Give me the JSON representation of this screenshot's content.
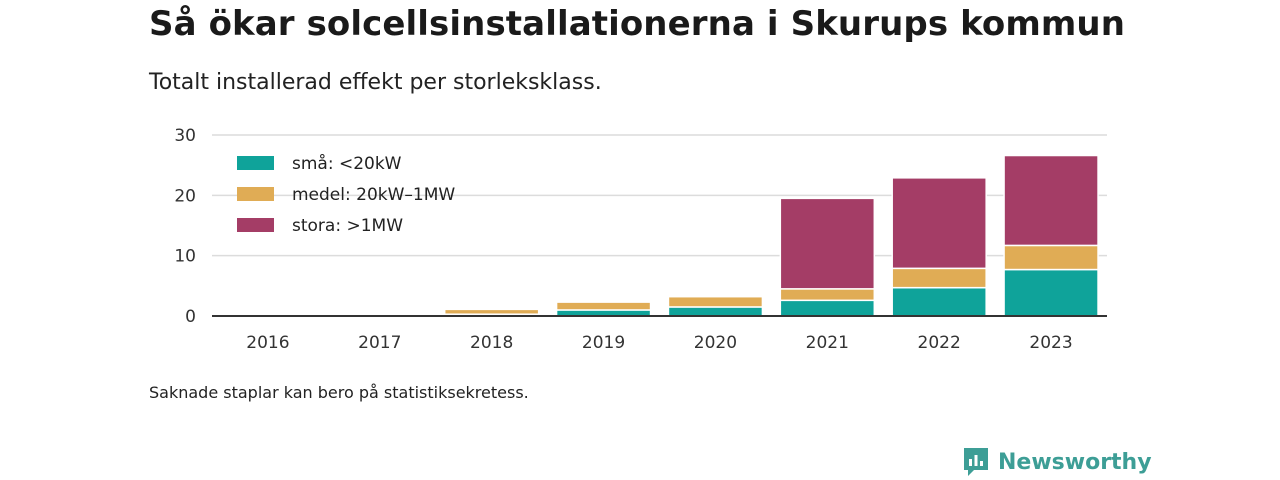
{
  "title": "Så ökar solcellsinstallationerna i Skurups kommun",
  "subtitle": "Totalt installerad effekt per storleksklass.",
  "note": "Saknade staplar kan bero på statistiksekretess.",
  "brand": {
    "name": "Newsworthy",
    "icon": "newsworthy-logo-icon",
    "color": "#3d9e96"
  },
  "chart_data": {
    "type": "bar",
    "stacked": true,
    "categories": [
      "2016",
      "2017",
      "2018",
      "2019",
      "2020",
      "2021",
      "2022",
      "2023"
    ],
    "series": [
      {
        "name": "små: <20kW",
        "color": "#0fa39a",
        "values": [
          0,
          0,
          0.3,
          1.0,
          1.5,
          2.6,
          4.7,
          7.7
        ]
      },
      {
        "name": "medel: 20kW–1MW",
        "color": "#e0ac55",
        "values": [
          0,
          0,
          0.8,
          1.3,
          1.7,
          1.9,
          3.2,
          4.0
        ]
      },
      {
        "name": "stora: >1MW",
        "color": "#a43d66",
        "values": [
          0,
          0,
          0,
          0,
          0,
          15.0,
          15.0,
          14.9
        ]
      }
    ],
    "ylim": [
      0,
      30
    ],
    "yticks": [
      0,
      10,
      20,
      30
    ],
    "grid": true,
    "legend_position": "top-left"
  }
}
